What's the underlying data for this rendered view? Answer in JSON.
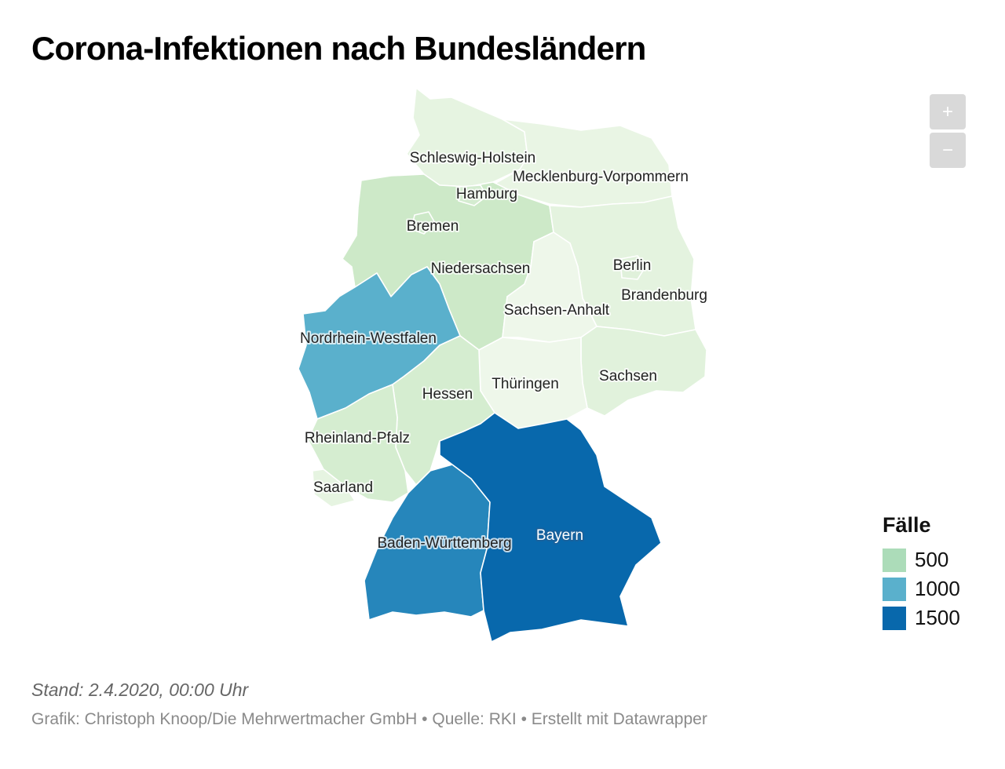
{
  "header": {
    "title": "Corona-Infektionen nach Bundesländern"
  },
  "colors": {
    "light": "#e9f5e4",
    "mid": "#cde9c8",
    "nrw": "#5ab0cc",
    "bw": "#2686bb",
    "bayern": "#0868ac"
  },
  "map": {
    "regions": [
      {
        "name": "Schleswig-Holstein",
        "color": "#e6f4e1"
      },
      {
        "name": "Mecklenburg-Vorpommern",
        "color": "#e9f5e4"
      },
      {
        "name": "Hamburg",
        "color": "#d4ecd0"
      },
      {
        "name": "Bremen",
        "color": "#cde9c8"
      },
      {
        "name": "Niedersachsen",
        "color": "#cde9c8"
      },
      {
        "name": "Berlin",
        "color": "#e0f1db"
      },
      {
        "name": "Brandenburg",
        "color": "#e4f3df"
      },
      {
        "name": "Sachsen-Anhalt",
        "color": "#eef7ea"
      },
      {
        "name": "Nordrhein-Westfalen",
        "color": "#5ab0cc"
      },
      {
        "name": "Hessen",
        "color": "#d5edd0"
      },
      {
        "name": "Thüringen",
        "color": "#eef7ea"
      },
      {
        "name": "Sachsen",
        "color": "#e1f2dc"
      },
      {
        "name": "Rheinland-Pfalz",
        "color": "#d5edd0"
      },
      {
        "name": "Saarland",
        "color": "#e6f4e1"
      },
      {
        "name": "Baden-Württemberg",
        "color": "#2686bb"
      },
      {
        "name": "Bayern",
        "color": "#0868ac"
      }
    ]
  },
  "zoom": {
    "in_label": "+",
    "out_label": "−"
  },
  "legend": {
    "title": "Fälle",
    "items": [
      {
        "label": "500",
        "color": "#acdcb9"
      },
      {
        "label": "1000",
        "color": "#5ab0cc"
      },
      {
        "label": "1500",
        "color": "#0868ac"
      }
    ]
  },
  "footer": {
    "stand": "Stand: 2.4.2020, 00:00 Uhr",
    "source": "Grafik: Christoph Knoop/Die Mehrwertmacher GmbH • Quelle: RKI • Erstellt mit Datawrapper"
  }
}
